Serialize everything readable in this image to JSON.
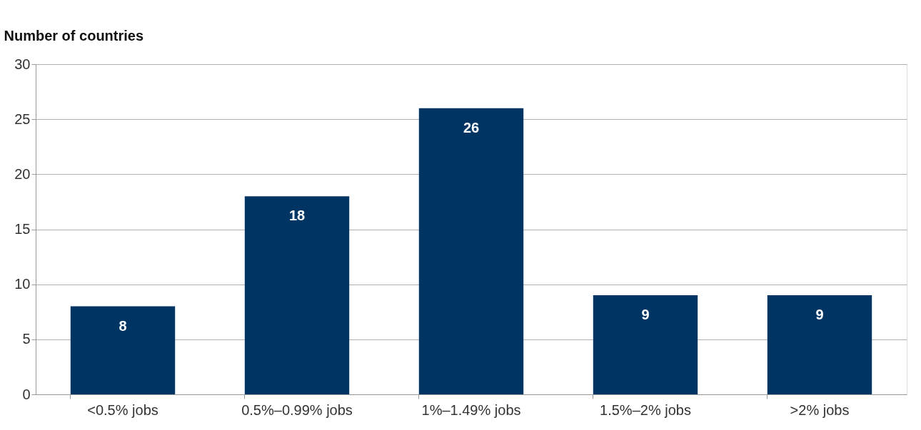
{
  "chart_data": {
    "type": "bar",
    "ylabel": "Number of countries",
    "categories": [
      "<0.5% jobs",
      "0.5%–0.99% jobs",
      "1%–1.49% jobs",
      "1.5%–2% jobs",
      ">2% jobs"
    ],
    "values": [
      8,
      18,
      26,
      9,
      9
    ],
    "color": "#003462",
    "ylim": [
      0,
      30
    ],
    "yticks": [
      0,
      5,
      10,
      15,
      20,
      25,
      30
    ],
    "grid": "y",
    "data_labels": true
  }
}
